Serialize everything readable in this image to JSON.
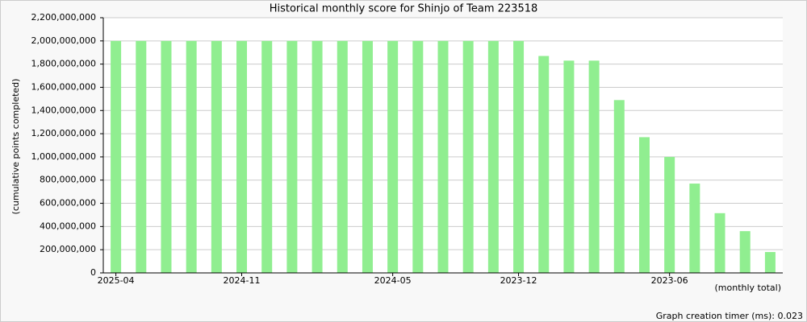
{
  "chart_data": {
    "type": "bar",
    "title": "Historical monthly score for Shinjo of Team 223518",
    "y_label": "(cumulative points completed)",
    "x_label": "(monthly total)",
    "footer": "Graph creation timer (ms): 0.023",
    "categories": [
      "2025-04",
      null,
      null,
      null,
      null,
      "2024-11",
      null,
      null,
      null,
      null,
      null,
      "2024-05",
      null,
      null,
      null,
      null,
      "2023-12",
      null,
      null,
      null,
      null,
      null,
      "2023-06",
      null,
      null,
      null,
      null
    ],
    "values": [
      2000000000,
      2000000000,
      2000000000,
      2000000000,
      2000000000,
      2000000000,
      2000000000,
      2000000000,
      2000000000,
      2000000000,
      2000000000,
      2000000000,
      2000000000,
      2000000000,
      2000000000,
      2000000000,
      2000000000,
      1870000000,
      1830000000,
      1830000000,
      1490000000,
      1170000000,
      1000000000,
      770000000,
      515000000,
      360000000,
      180000000
    ],
    "color": "#90ee90",
    "ylim": [
      0,
      2200000000
    ],
    "yticks": [
      0,
      {
        "value": 200000000,
        "label": "200,000,000"
      },
      {
        "value": 400000000,
        "label": "400,000,000"
      },
      {
        "value": 600000000,
        "label": "600,000,000"
      },
      {
        "value": 800000000,
        "label": "800,000,000"
      },
      {
        "value": 1000000000,
        "label": "1,000,000,000"
      },
      {
        "value": 1200000000,
        "label": "1,200,000,000"
      },
      {
        "value": 1400000000,
        "label": "1,400,000,000"
      },
      {
        "value": 1600000000,
        "label": "1,600,000,000"
      },
      {
        "value": 1800000000,
        "label": "1,800,000,000"
      },
      {
        "value": 2000000000,
        "label": "2,000,000,000"
      },
      {
        "value": 2200000000,
        "label": "2,200,000,000"
      }
    ],
    "grid": true
  }
}
